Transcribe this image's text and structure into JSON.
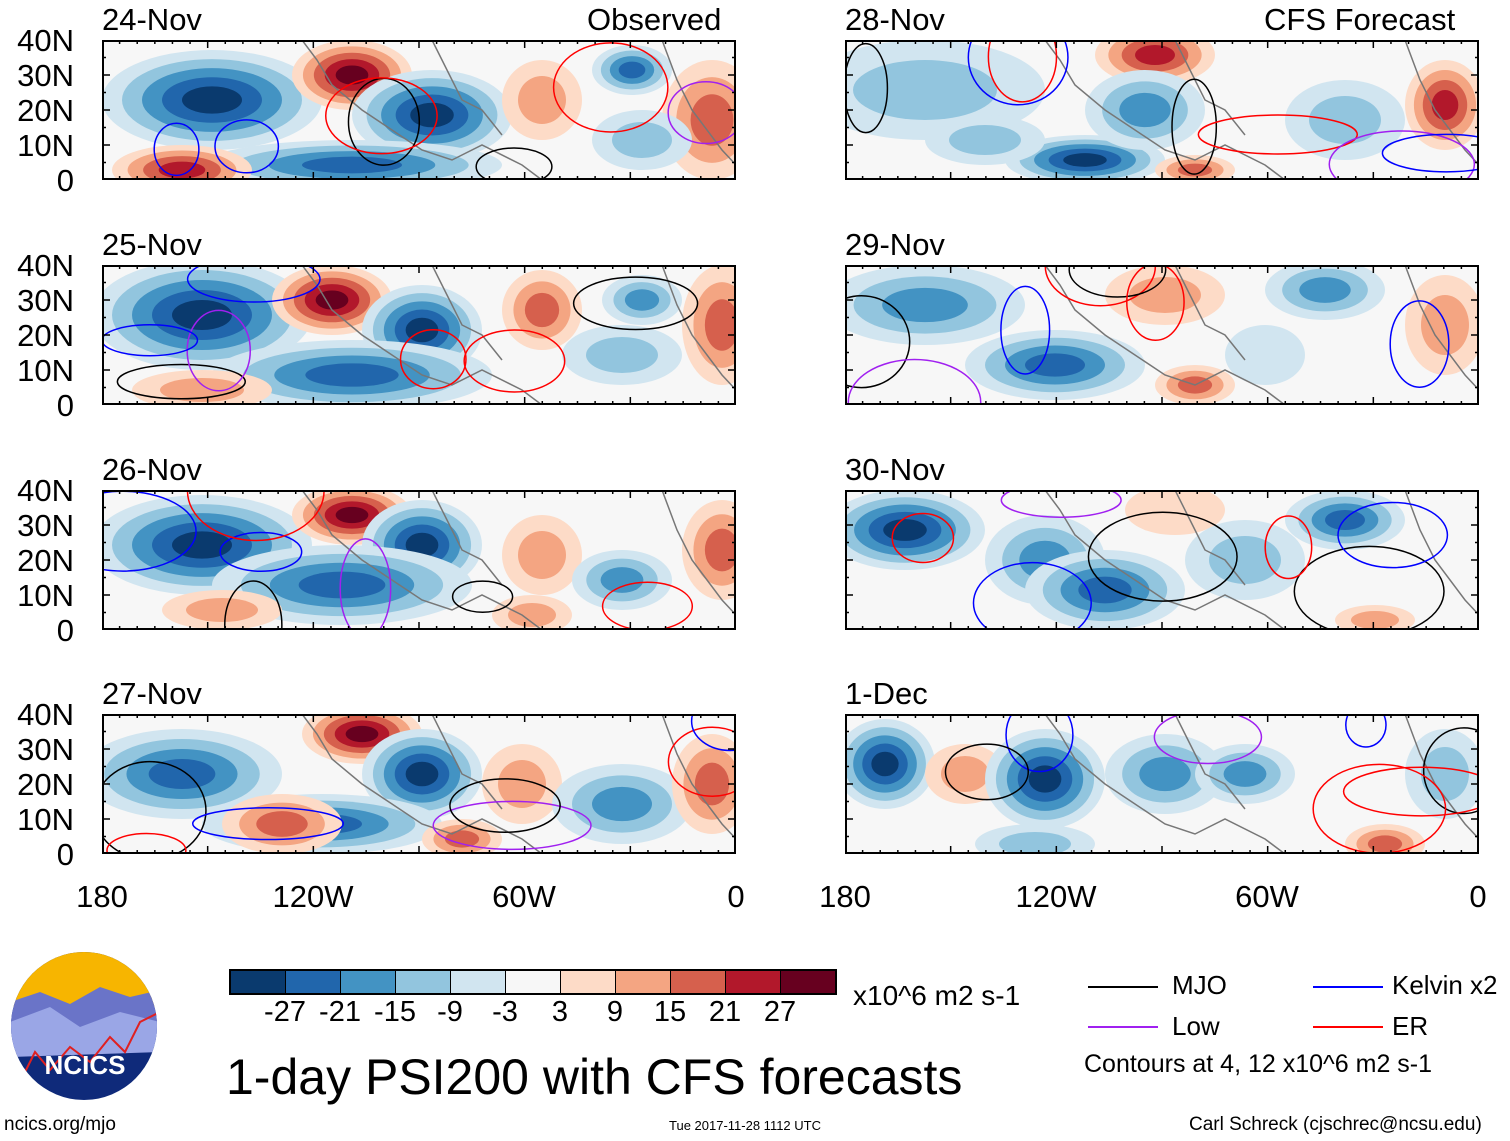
{
  "headers": {
    "left": "Observed",
    "right": "CFS Forecast"
  },
  "panels": [
    {
      "date": "24-Nov"
    },
    {
      "date": "25-Nov"
    },
    {
      "date": "26-Nov"
    },
    {
      "date": "27-Nov"
    },
    {
      "date": "28-Nov"
    },
    {
      "date": "29-Nov"
    },
    {
      "date": "30-Nov"
    },
    {
      "date": "1-Dec"
    }
  ],
  "y_ticks": [
    "40N",
    "30N",
    "20N",
    "10N",
    "0"
  ],
  "x_ticks": [
    "180",
    "120W",
    "60W",
    "0"
  ],
  "colorbar": {
    "labels": [
      "-27",
      "-21",
      "-15",
      "-9",
      "-3",
      "3",
      "9",
      "15",
      "21",
      "27"
    ],
    "colors": [
      "#0a3a6e",
      "#2166ac",
      "#4393c3",
      "#92c5de",
      "#d1e5f0",
      "#f7f7f7",
      "#fddbc7",
      "#f4a582",
      "#d6604d",
      "#b2182b",
      "#67001f"
    ],
    "units": "x10^6 m2 s-1"
  },
  "legend": {
    "items": [
      {
        "label": "MJO",
        "color": "#000000"
      },
      {
        "label": "Kelvin x2",
        "color": "#0000ff"
      },
      {
        "label": "Low",
        "color": "#a020f0"
      },
      {
        "label": "ER",
        "color": "#ff0000"
      }
    ],
    "note": "Contours at 4, 12 x10^6 m2 s-1"
  },
  "title": "1-day PSI200 with CFS forecasts",
  "logo_text": "NCICS",
  "footer": {
    "url": "ncics.org/mjo",
    "timestamp": "Tue 2017-11-28 1112 UTC",
    "author": "Carl Schreck (cjschrec@ncsu.edu)"
  }
}
